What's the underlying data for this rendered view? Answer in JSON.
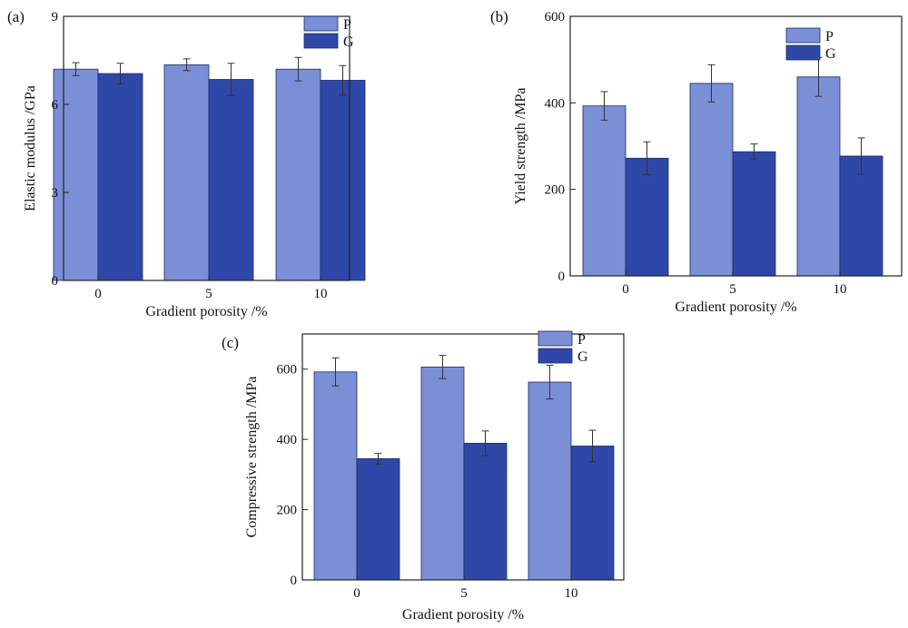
{
  "colors": {
    "P": "#7b8fd6",
    "G": "#2f48a8",
    "axis": "#222222",
    "error": "#333333"
  },
  "chart_data": [
    {
      "panel_label": "(a)",
      "type": "bar",
      "categories": [
        "0",
        "5",
        "10"
      ],
      "xlabel": "Gradient porosity /%",
      "ylabel": "Elastic modulus /GPa",
      "ylim": [
        0,
        9
      ],
      "yticks": [
        "0",
        "3",
        "6",
        "9"
      ],
      "legend_position": "top-right",
      "series": [
        {
          "name": "P",
          "values": [
            7.2,
            7.35,
            7.2
          ],
          "errors": [
            0.22,
            0.2,
            0.4
          ]
        },
        {
          "name": "G",
          "values": [
            7.05,
            6.85,
            6.82
          ],
          "errors": [
            0.35,
            0.55,
            0.5
          ]
        }
      ]
    },
    {
      "panel_label": "(b)",
      "type": "bar",
      "categories": [
        "0",
        "5",
        "10"
      ],
      "xlabel": "Gradient porosity /%",
      "ylabel": "Yield strength /MPa",
      "ylim": [
        0,
        600
      ],
      "yticks": [
        "0",
        "200",
        "400",
        "600"
      ],
      "legend_position": "top-right",
      "series": [
        {
          "name": "P",
          "values": [
            393,
            445,
            460
          ],
          "errors": [
            33,
            43,
            45
          ]
        },
        {
          "name": "G",
          "values": [
            272,
            287,
            277
          ],
          "errors": [
            38,
            18,
            42
          ]
        }
      ]
    },
    {
      "panel_label": "(c)",
      "type": "bar",
      "categories": [
        "0",
        "5",
        "10"
      ],
      "xlabel": "Gradient porosity /%",
      "ylabel": "Compressive strength /MPa",
      "ylim": [
        0,
        700
      ],
      "yticks": [
        "0",
        "200",
        "400",
        "600"
      ],
      "legend_position": "top-right",
      "series": [
        {
          "name": "P",
          "values": [
            592,
            606,
            563
          ],
          "errors": [
            40,
            33,
            48
          ]
        },
        {
          "name": "G",
          "values": [
            345,
            389,
            381
          ],
          "errors": [
            15,
            35,
            45
          ]
        }
      ]
    }
  ]
}
